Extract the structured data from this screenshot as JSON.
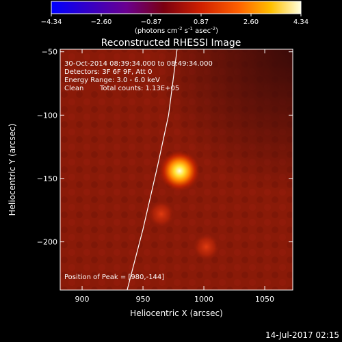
{
  "chart_data": {
    "type": "heatmap",
    "title": "Reconstructed RHESSI Image",
    "colorbar": {
      "tick_labels": [
        "-4.34",
        "-2.60",
        "-0.87",
        "0.87",
        "2.60",
        "4.34"
      ],
      "unit_prefix": "(photons cm",
      "unit_exp1": "-2",
      "unit_mid1": " s",
      "unit_exp2": "-1",
      "unit_mid2": " asec",
      "unit_exp3": "-2",
      "unit_suffix": ")",
      "range": [
        -4.34,
        4.34
      ]
    },
    "info": {
      "time_range": "30-Oct-2014 08:39:34.000 to 08:49:34.000",
      "detectors": "Detectors: 3F 6F 9F, Att 0",
      "energy": "Energy Range: 3.0 - 6.0 keV",
      "method": "Clean",
      "counts": "Total counts: 1.13E+05"
    },
    "peak_label": "Position of Peak = [980,-144]",
    "peak": [
      980,
      -144
    ],
    "xlabel": "Heliocentric X (arcsec)",
    "ylabel": "Heliocentric Y (arcsec)",
    "xlim": [
      882,
      1073
    ],
    "ylim": [
      -238,
      -48
    ],
    "x_ticks": [
      {
        "v": 900,
        "label": "900"
      },
      {
        "v": 950,
        "label": "950"
      },
      {
        "v": 1000,
        "label": "1000"
      },
      {
        "v": 1050,
        "label": "1050"
      }
    ],
    "y_ticks": [
      {
        "v": -50,
        "label": "−50"
      },
      {
        "v": -100,
        "label": "−100"
      },
      {
        "v": -150,
        "label": "−150"
      },
      {
        "v": -200,
        "label": "−200"
      }
    ],
    "sources": [
      {
        "x": 980,
        "y": -144,
        "intensity": 4.34
      },
      {
        "x": 965,
        "y": -178,
        "intensity": 2.0
      },
      {
        "x": 1002,
        "y": -204,
        "intensity": 1.6
      }
    ],
    "limb_curve": [
      [
        937,
        -238
      ],
      [
        950,
        -190
      ],
      [
        962,
        -140
      ],
      [
        971,
        -100
      ],
      [
        978,
        -48
      ]
    ],
    "colors": {
      "background": "#000000",
      "map_base": "#8a1a08",
      "limb": "#ffffff",
      "text": "#ffffff"
    }
  },
  "timestamp": "14-Jul-2017 02:15"
}
